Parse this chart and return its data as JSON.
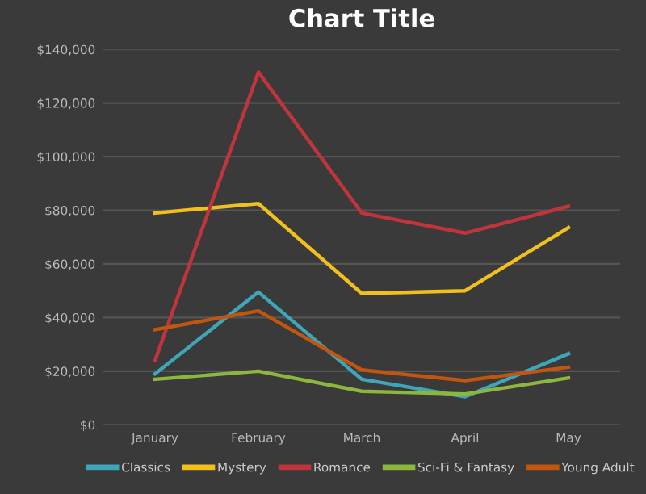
{
  "chart_data": {
    "type": "line",
    "title": "Chart Title",
    "categories": [
      "January",
      "February",
      "March",
      "April",
      "May"
    ],
    "series": [
      {
        "name": "Classics",
        "color": "#3ea6b8",
        "values": [
          19000,
          49500,
          17000,
          10500,
          26500
        ]
      },
      {
        "name": "Mystery",
        "color": "#f2c01e",
        "values": [
          79000,
          82500,
          49000,
          50000,
          73500
        ]
      },
      {
        "name": "Romance",
        "color": "#c0343c",
        "values": [
          24000,
          131500,
          79000,
          71500,
          81500
        ]
      },
      {
        "name": "Sci-Fi & Fantasy",
        "color": "#8db63c",
        "values": [
          17000,
          20000,
          12500,
          11500,
          17500
        ]
      },
      {
        "name": "Young Adult",
        "color": "#c0560f",
        "values": [
          35500,
          42500,
          20500,
          16500,
          21500
        ]
      }
    ],
    "ylim": [
      0,
      140000
    ],
    "yticks": [
      {
        "value": 0,
        "label": "$0"
      },
      {
        "value": 20000,
        "label": "$20,000"
      },
      {
        "value": 40000,
        "label": "$40,000"
      },
      {
        "value": 60000,
        "label": "$60,000"
      },
      {
        "value": 80000,
        "label": "$80,000"
      },
      {
        "value": 100000,
        "label": "$100,000"
      },
      {
        "value": 120000,
        "label": "$120,000"
      },
      {
        "value": 140000,
        "label": "$140,000"
      }
    ],
    "grid": "y",
    "legend": "bottom",
    "marker": "none",
    "line_style": "solid"
  }
}
